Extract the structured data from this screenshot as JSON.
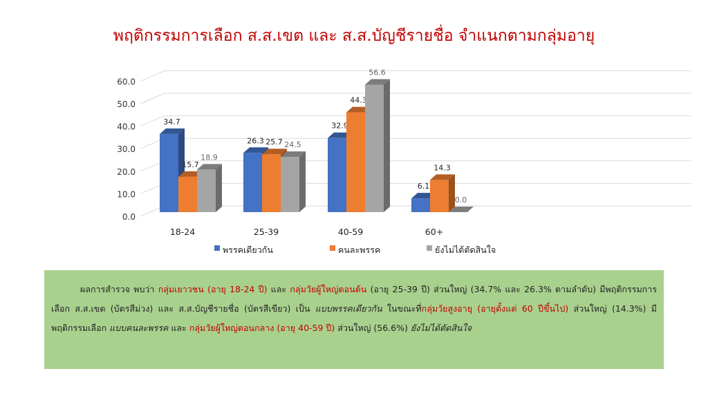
{
  "title": "พฤติกรรมการเลือก ส.ส.เขต และ ส.ส.บัญชีรายชื่อ จำแนกตามกลุ่มอายุ",
  "chart_data": {
    "type": "bar",
    "title": "พฤติกรรมการเลือก ส.ส.เขต และ ส.ส.บัญชีรายชื่อ จำแนกตามกลุ่มอายุ",
    "categories": [
      "18-24",
      "25-39",
      "40-59",
      "60+"
    ],
    "series": [
      {
        "name": "พรรคเดียวกัน",
        "color": "#4472c4",
        "values": [
          34.7,
          26.3,
          32.9,
          6.1
        ]
      },
      {
        "name": "คนละพรรค",
        "color": "#ed7d31",
        "values": [
          15.7,
          25.7,
          44.3,
          14.3
        ]
      },
      {
        "name": "ยังไม่ได้ตัดสินใจ",
        "color": "#a5a5a5",
        "values": [
          18.9,
          24.5,
          56.6,
          0.0
        ]
      }
    ],
    "yticks": [
      "0.0",
      "10.0",
      "20.0",
      "30.0",
      "40.0",
      "50.0",
      "60.0"
    ],
    "ylim": [
      0,
      60
    ],
    "xlabel": "",
    "ylabel": "",
    "grid": true,
    "legend": "bottom"
  },
  "summary": [
    {
      "text": "ผลการสำรวจ พบว่า ",
      "style": ""
    },
    {
      "text": "กลุ่มเยาวชน (อายุ 18-24 ปี)",
      "style": "red"
    },
    {
      "text": " และ ",
      "style": ""
    },
    {
      "text": "กลุ่มวัยผู้ใหญ่ตอนต้น",
      "style": "red"
    },
    {
      "text": " (อายุ 25-39 ปี) ส่วนใหญ่ (34.7% และ 26.3% ตามลำดับ) มีพฤติกรรมการเลือก ส.ส.เขต (บัตรสีม่วง) และ ส.ส.บัญชีรายชื่อ (บัตรสีเขียว) เป็น ",
      "style": ""
    },
    {
      "text": "แบบพรรคเดียวกัน",
      "style": "it"
    },
    {
      "text": " ในขณะที่",
      "style": ""
    },
    {
      "text": "กลุ่มวัยสูงอายุ (อายุตั้งแต่ 60 ปีขึ้นไป)",
      "style": "red"
    },
    {
      "text": " ส่วนใหญ่ (14.3%) มีพฤติกรรมเลือก ",
      "style": ""
    },
    {
      "text": "แบบคนละพรรค",
      "style": "it"
    },
    {
      "text": "  และ ",
      "style": ""
    },
    {
      "text": "กลุ่มวัยผู้ใหญ่ตอนกลาง (อายุ 40-59 ปี)",
      "style": "red"
    },
    {
      "text": " ส่วนใหญ่ (56.6%) ",
      "style": ""
    },
    {
      "text": "ยังไม่ได้ตัดสินใจ",
      "style": "it"
    }
  ]
}
